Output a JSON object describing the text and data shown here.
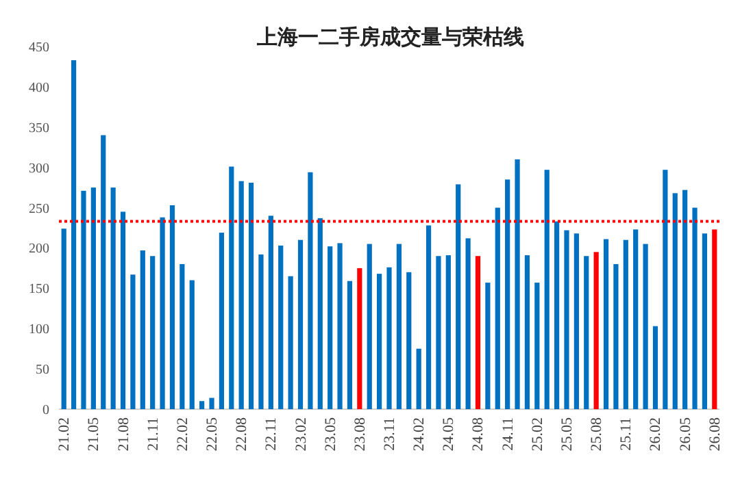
{
  "chart_data": {
    "type": "bar",
    "title": "上海一二手房成交量与荣枯线",
    "categories": [
      "21.02",
      null,
      null,
      "21.05",
      null,
      null,
      "21.08",
      null,
      null,
      "21.11",
      null,
      null,
      "22.02",
      null,
      null,
      "22.05",
      null,
      null,
      "22.08",
      null,
      null,
      "22.11",
      null,
      null,
      "23.02",
      null,
      null,
      "23.05",
      null,
      null,
      "23.08",
      null,
      null,
      "23.11",
      null,
      null,
      "24.02",
      null,
      null,
      "24.05",
      null,
      null,
      "24.08",
      null,
      null,
      "24.11",
      null,
      null,
      "25.02",
      null,
      null,
      "25.05",
      null,
      null,
      "25.08",
      null,
      null,
      "25.11",
      null,
      null,
      "26.02",
      null,
      null,
      "26.05",
      null,
      null,
      "26.08"
    ],
    "values": [
      224,
      433,
      271,
      275,
      340,
      275,
      245,
      167,
      197,
      190,
      238,
      253,
      180,
      160,
      10,
      14,
      219,
      301,
      283,
      281,
      192,
      240,
      203,
      165,
      210,
      294,
      237,
      202,
      206,
      159,
      175,
      205,
      168,
      176,
      205,
      170,
      75,
      228,
      190,
      191,
      279,
      212,
      190,
      157,
      250,
      285,
      310,
      191,
      157,
      297,
      233,
      222,
      218,
      190,
      195,
      211,
      180,
      210,
      223,
      205,
      103,
      297,
      268,
      272,
      250,
      218,
      223
    ],
    "colors": [
      "#0070c0",
      "#0070c0",
      "#0070c0",
      "#0070c0",
      "#0070c0",
      "#0070c0",
      "#0070c0",
      "#0070c0",
      "#0070c0",
      "#0070c0",
      "#0070c0",
      "#0070c0",
      "#0070c0",
      "#0070c0",
      "#0070c0",
      "#0070c0",
      "#0070c0",
      "#0070c0",
      "#0070c0",
      "#0070c0",
      "#0070c0",
      "#0070c0",
      "#0070c0",
      "#0070c0",
      "#0070c0",
      "#0070c0",
      "#0070c0",
      "#0070c0",
      "#0070c0",
      "#0070c0",
      "#ff0000",
      "#0070c0",
      "#0070c0",
      "#0070c0",
      "#0070c0",
      "#0070c0",
      "#0070c0",
      "#0070c0",
      "#0070c0",
      "#0070c0",
      "#0070c0",
      "#0070c0",
      "#ff0000",
      "#0070c0",
      "#0070c0",
      "#0070c0",
      "#0070c0",
      "#0070c0",
      "#0070c0",
      "#0070c0",
      "#0070c0",
      "#0070c0",
      "#0070c0",
      "#0070c0",
      "#ff0000",
      "#0070c0",
      "#0070c0",
      "#0070c0",
      "#0070c0",
      "#0070c0",
      "#0070c0",
      "#0070c0",
      "#0070c0",
      "#0070c0",
      "#0070c0",
      "#0070c0",
      "#ff0000"
    ],
    "ylim": [
      0,
      450
    ],
    "yticks": [
      0,
      50,
      100,
      150,
      200,
      250,
      300,
      350,
      400,
      450
    ],
    "ref_lines": [
      {
        "axis": "y",
        "value": 233,
        "label": null,
        "color": "#ff0000",
        "line_style": "dotted"
      }
    ]
  }
}
